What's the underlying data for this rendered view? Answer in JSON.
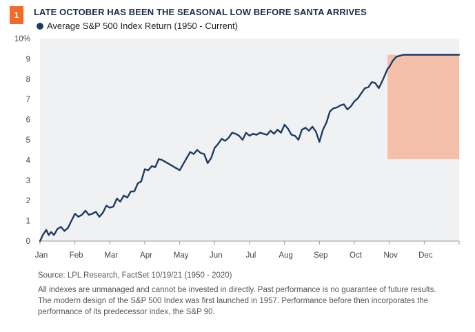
{
  "header": {
    "badge": "1",
    "title": "LATE OCTOBER HAS BEEN THE SEASONAL LOW BEFORE SANTA ARRIVES",
    "legend": "Average S&P 500 Index Return (1950 - Current)"
  },
  "footer": {
    "source": "Source: LPL Research, FactSet 10/19/21 (1950 - 2020)",
    "disclaimer_1": "All indexes are unmanaged and cannot be invested in directly. Past performance is no guarantee of future results.",
    "disclaimer_2": "The modern design of the S&P 500 Index was first launched in 1957. Performance before then incorporates the performance of its  predecessor index, the S&P 90."
  },
  "colors": {
    "badge": "#f26b2a",
    "line": "#1c3a63",
    "plot_bg": "#f0f1f3",
    "highlight": "#f5b79c"
  },
  "chart_data": {
    "type": "line",
    "title": "LATE OCTOBER HAS BEEN THE SEASONAL LOW BEFORE SANTA ARRIVES",
    "xlabel": "",
    "ylabel": "",
    "ylim": [
      0,
      10
    ],
    "xlim": [
      0,
      12
    ],
    "x_unit": "months from Jan 1",
    "y_tick_labels": [
      "0",
      "1",
      "2",
      "3",
      "4",
      "5",
      "6",
      "7",
      "8",
      "9",
      "10%"
    ],
    "x_tick_labels": [
      "Jan",
      "Feb",
      "Mar",
      "Apr",
      "May",
      "Jun",
      "Jul",
      "Aug",
      "Sep",
      "Oct",
      "Nov",
      "Dec"
    ],
    "grid": "none",
    "legend_position": "top-left",
    "highlight_region": {
      "x": [
        9.95,
        12.0
      ],
      "y": [
        4.05,
        9.2
      ]
    },
    "series": [
      {
        "name": "Average S&P 500 Index Return (1950 - Current)",
        "x": [
          0.0,
          0.08,
          0.18,
          0.25,
          0.32,
          0.4,
          0.5,
          0.6,
          0.7,
          0.8,
          0.9,
          1.0,
          1.1,
          1.2,
          1.3,
          1.4,
          1.5,
          1.6,
          1.7,
          1.8,
          1.9,
          2.0,
          2.1,
          2.2,
          2.3,
          2.4,
          2.5,
          2.6,
          2.7,
          2.8,
          2.9,
          3.0,
          3.1,
          3.2,
          3.3,
          3.4,
          3.5,
          3.6,
          3.7,
          3.8,
          3.9,
          4.0,
          4.1,
          4.2,
          4.3,
          4.4,
          4.5,
          4.6,
          4.7,
          4.8,
          4.9,
          5.0,
          5.1,
          5.2,
          5.3,
          5.4,
          5.5,
          5.6,
          5.7,
          5.8,
          5.9,
          6.0,
          6.1,
          6.2,
          6.3,
          6.4,
          6.5,
          6.6,
          6.7,
          6.8,
          6.9,
          7.0,
          7.1,
          7.2,
          7.3,
          7.4,
          7.5,
          7.6,
          7.7,
          7.8,
          7.9,
          8.0,
          8.1,
          8.2,
          8.3,
          8.4,
          8.5,
          8.6,
          8.7,
          8.8,
          8.9,
          9.0,
          9.1,
          9.2,
          9.3,
          9.4,
          9.5,
          9.6,
          9.7,
          9.8,
          9.9,
          9.95,
          10.0,
          10.1,
          10.2,
          10.3,
          10.4,
          10.5,
          10.6,
          10.7,
          10.8,
          10.9,
          11.0,
          11.1,
          11.2,
          11.3,
          11.4,
          11.5,
          11.6,
          11.7,
          11.8,
          11.9,
          12.0
        ],
        "values": [
          0.0,
          0.3,
          0.55,
          0.3,
          0.45,
          0.3,
          0.6,
          0.7,
          0.5,
          0.65,
          1.0,
          1.35,
          1.2,
          1.3,
          1.5,
          1.3,
          1.35,
          1.45,
          1.2,
          1.4,
          1.75,
          1.65,
          1.7,
          2.1,
          1.95,
          2.25,
          2.15,
          2.45,
          2.45,
          2.85,
          2.95,
          3.55,
          3.5,
          3.7,
          3.65,
          4.05,
          4.0,
          3.9,
          3.8,
          3.7,
          3.6,
          3.5,
          3.8,
          4.1,
          4.4,
          4.3,
          4.5,
          4.35,
          4.3,
          3.85,
          4.1,
          4.6,
          4.8,
          5.05,
          4.95,
          5.1,
          5.35,
          5.3,
          5.2,
          5.0,
          5.35,
          5.2,
          5.3,
          5.25,
          5.35,
          5.3,
          5.25,
          5.45,
          5.3,
          5.5,
          5.35,
          5.75,
          5.55,
          5.25,
          5.2,
          5.0,
          5.5,
          5.6,
          5.45,
          5.65,
          5.4,
          4.9,
          5.5,
          5.85,
          6.4,
          6.55,
          6.6,
          6.7,
          6.75,
          6.5,
          6.65,
          6.9,
          7.05,
          7.3,
          7.55,
          7.6,
          7.85,
          7.8,
          7.55,
          7.9,
          8.3,
          8.5,
          8.6,
          8.9,
          9.1,
          9.15,
          9.2,
          9.2,
          9.2,
          9.2,
          9.2,
          9.2,
          9.2,
          9.2,
          9.2,
          9.2,
          9.2,
          9.2,
          9.2,
          9.2,
          9.2,
          9.2,
          9.2
        ]
      }
    ]
  }
}
